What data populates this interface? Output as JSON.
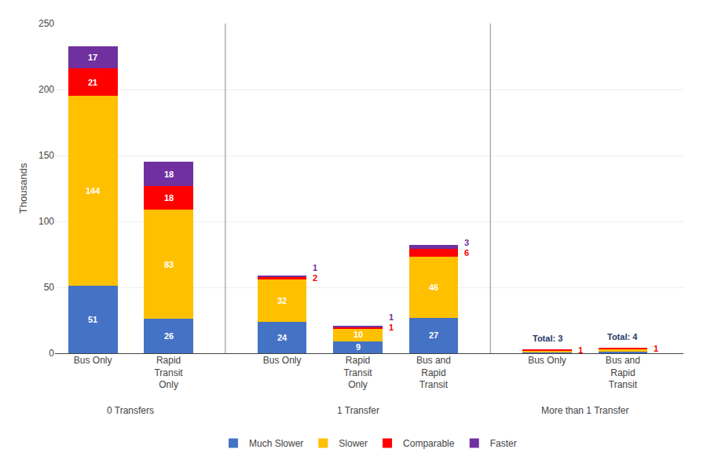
{
  "chart_data": {
    "type": "bar",
    "stacked": true,
    "categories": [
      "Bus Only",
      "Rapid\nTransit\nOnly",
      "Bus Only",
      "Rapid\nTransit\nOnly",
      "Bus and\nRapid\nTransit",
      "Bus Only",
      "Bus and\nRapid\nTransit"
    ],
    "category_groups": [
      "0 Transfers",
      "0 Transfers",
      "1 Transfer",
      "1 Transfer",
      "1 Transfer",
      "More than 1 Transfer",
      "More than 1 Transfer"
    ],
    "series": [
      {
        "name": "Much Slower",
        "color": "#4472C4",
        "values": [
          51,
          26,
          24,
          9,
          27,
          1,
          1
        ],
        "value_labels": [
          "51",
          "26",
          "24",
          "9",
          "27",
          null,
          null
        ]
      },
      {
        "name": "Slower",
        "color": "#FFC000",
        "values": [
          144,
          83,
          32,
          10,
          46,
          1,
          2
        ],
        "value_labels": [
          "144",
          "83",
          "32",
          "10",
          "46",
          null,
          null
        ]
      },
      {
        "name": "Comparable",
        "color": "#FF0000",
        "values": [
          21,
          18,
          2,
          1,
          6,
          1,
          1
        ],
        "value_labels": [
          "21",
          "18",
          "2",
          "1",
          "6",
          "1",
          "1"
        ]
      },
      {
        "name": "Faster",
        "color": "#7030A0",
        "values": [
          17,
          18,
          1,
          1,
          3,
          0,
          0
        ],
        "value_labels": [
          "17",
          "18",
          "1",
          "1",
          "3",
          null,
          null
        ]
      }
    ],
    "total_labels": [
      null,
      null,
      null,
      null,
      null,
      "Total: 3",
      "Total: 4"
    ],
    "ylabel": "Thousands",
    "ylim": [
      0,
      250
    ],
    "yticks": [
      0,
      50,
      100,
      150,
      200,
      250
    ],
    "grid": true,
    "data_labels": true,
    "legend": "bottom"
  }
}
